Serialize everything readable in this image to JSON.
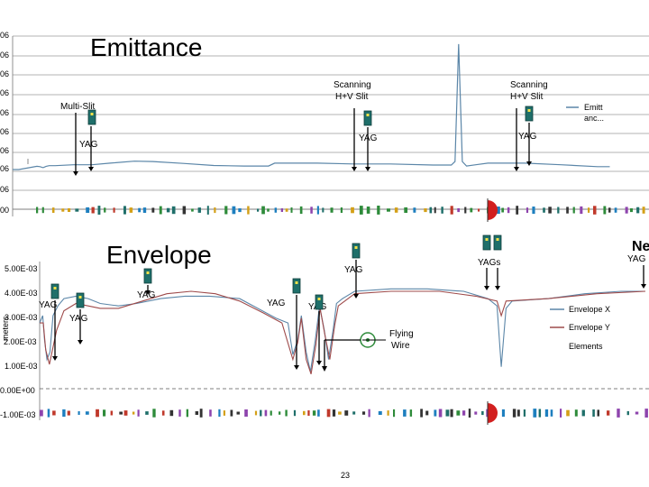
{
  "chart_data": [
    {
      "type": "line",
      "title": "Emittance",
      "ytick_labels": [
        "06",
        "06",
        "06",
        "06",
        "06",
        "06",
        "06",
        "06",
        "06",
        "00"
      ],
      "legend": [
        "Emitt anc..."
      ],
      "annotations": [
        {
          "label": "Multi-Slit",
          "x": 0.1
        },
        {
          "label": "YAG",
          "x": 0.13
        },
        {
          "label": "Scanning H+V Slit",
          "x": 0.555
        },
        {
          "label": "YAG",
          "x": 0.56
        },
        {
          "label": "Scanning H+V Slit",
          "x": 0.82
        },
        {
          "label": "YAG",
          "x": 0.81
        }
      ],
      "series": [
        {
          "points": [
            [
              0.0,
              0.0
            ],
            [
              0.01,
              0.0
            ],
            [
              0.04,
              0.02
            ],
            [
              0.045,
              0.018
            ],
            [
              0.05,
              0.012
            ],
            [
              0.055,
              0.02
            ],
            [
              0.06,
              0.024
            ],
            [
              0.07,
              0.024
            ],
            [
              0.1,
              0.03
            ],
            [
              0.13,
              0.03
            ],
            [
              0.16,
              0.04
            ],
            [
              0.2,
              0.052
            ],
            [
              0.23,
              0.05
            ],
            [
              0.28,
              0.038
            ],
            [
              0.33,
              0.025
            ],
            [
              0.38,
              0.022
            ],
            [
              0.42,
              0.022
            ],
            [
              0.43,
              0.04
            ],
            [
              0.5,
              0.04
            ],
            [
              0.56,
              0.035
            ],
            [
              0.62,
              0.035
            ],
            [
              0.69,
              0.028
            ],
            [
              0.72,
              0.028
            ],
            [
              0.726,
              0.05
            ],
            [
              0.732,
              0.78
            ],
            [
              0.738,
              0.05
            ],
            [
              0.745,
              0.022
            ],
            [
              0.76,
              0.03
            ],
            [
              0.78,
              0.04
            ],
            [
              0.84,
              0.04
            ],
            [
              0.9,
              0.03
            ],
            [
              0.96,
              0.018
            ],
            [
              0.98,
              0.018
            ]
          ]
        }
      ]
    },
    {
      "type": "line",
      "title": "Envelope",
      "ylabel": "meters",
      "ytick_labels": [
        "5.00E-03",
        "4.00E-03",
        "3.00E-03",
        "2.00E-03",
        "1.00E-03",
        "0.00E+00",
        "-1.00E-03"
      ],
      "ylim": [
        -0.001,
        0.005
      ],
      "legend": [
        "Envelope X",
        "Envelope Y",
        "Elements"
      ],
      "annotations": [
        {
          "label": "YAG",
          "x": 0.075
        },
        {
          "label": "YAG",
          "x": 0.123
        },
        {
          "label": "YAG",
          "x": 0.22
        },
        {
          "label": "YAG",
          "x": 0.425
        },
        {
          "label": "YAG",
          "x": 0.49
        },
        {
          "label": "YAG",
          "x": 0.545
        },
        {
          "label": "YAGs",
          "x": 0.76
        },
        {
          "label": "YAG",
          "x": 0.99
        },
        {
          "label": "Flying Wire",
          "x": 0.6
        },
        {
          "label": "Ne",
          "x": 0.99
        }
      ],
      "series": [
        {
          "name": "Envelope X",
          "points": [
            [
              0.0,
              0.0027
            ],
            [
              0.005,
              0.003
            ],
            [
              0.008,
              0.002
            ],
            [
              0.012,
              0.0012
            ],
            [
              0.017,
              0.0015
            ],
            [
              0.022,
              0.003
            ],
            [
              0.03,
              0.0034
            ],
            [
              0.04,
              0.0037
            ],
            [
              0.06,
              0.0038
            ],
            [
              0.08,
              0.0037
            ],
            [
              0.1,
              0.0035
            ],
            [
              0.13,
              0.0034
            ],
            [
              0.16,
              0.0035
            ],
            [
              0.2,
              0.0037
            ],
            [
              0.24,
              0.0038
            ],
            [
              0.28,
              0.0038
            ],
            [
              0.33,
              0.0037
            ],
            [
              0.36,
              0.0033
            ],
            [
              0.39,
              0.0029
            ],
            [
              0.41,
              0.0027
            ],
            [
              0.418,
              0.0014
            ],
            [
              0.426,
              0.002
            ],
            [
              0.432,
              0.003
            ],
            [
              0.44,
              0.0015
            ],
            [
              0.447,
              0.0007
            ],
            [
              0.455,
              0.002
            ],
            [
              0.462,
              0.0034
            ],
            [
              0.47,
              0.0024
            ],
            [
              0.477,
              0.0012
            ],
            [
              0.485,
              0.0025
            ],
            [
              0.49,
              0.0035
            ],
            [
              0.5,
              0.0037
            ],
            [
              0.52,
              0.004
            ],
            [
              0.58,
              0.0041
            ],
            [
              0.64,
              0.0041
            ],
            [
              0.7,
              0.004
            ],
            [
              0.74,
              0.0037
            ],
            [
              0.755,
              0.0034
            ],
            [
              0.762,
              0.0009
            ],
            [
              0.77,
              0.0033
            ],
            [
              0.78,
              0.0036
            ],
            [
              0.84,
              0.0037
            ],
            [
              0.9,
              0.0039
            ],
            [
              0.96,
              0.004
            ],
            [
              1.0,
              0.004
            ]
          ]
        },
        {
          "name": "Envelope Y",
          "points": [
            [
              0.0,
              0.0027
            ],
            [
              0.006,
              0.0027
            ],
            [
              0.01,
              0.0016
            ],
            [
              0.016,
              0.001
            ],
            [
              0.022,
              0.0017
            ],
            [
              0.028,
              0.0024
            ],
            [
              0.04,
              0.0032
            ],
            [
              0.06,
              0.0035
            ],
            [
              0.08,
              0.0034
            ],
            [
              0.1,
              0.0033
            ],
            [
              0.13,
              0.0033
            ],
            [
              0.17,
              0.0036
            ],
            [
              0.21,
              0.0039
            ],
            [
              0.25,
              0.004
            ],
            [
              0.29,
              0.0039
            ],
            [
              0.33,
              0.0036
            ],
            [
              0.37,
              0.0031
            ],
            [
              0.4,
              0.0027
            ],
            [
              0.418,
              0.0012
            ],
            [
              0.426,
              0.0019
            ],
            [
              0.432,
              0.0029
            ],
            [
              0.44,
              0.0012
            ],
            [
              0.448,
              0.0006
            ],
            [
              0.456,
              0.0018
            ],
            [
              0.463,
              0.0033
            ],
            [
              0.471,
              0.0022
            ],
            [
              0.479,
              0.0012
            ],
            [
              0.487,
              0.0026
            ],
            [
              0.493,
              0.0034
            ],
            [
              0.52,
              0.0039
            ],
            [
              0.58,
              0.004
            ],
            [
              0.66,
              0.004
            ],
            [
              0.72,
              0.0038
            ],
            [
              0.755,
              0.0036
            ],
            [
              0.762,
              0.003
            ],
            [
              0.77,
              0.0036
            ],
            [
              0.84,
              0.0037
            ],
            [
              0.92,
              0.0039
            ],
            [
              1.0,
              0.004
            ]
          ]
        }
      ]
    }
  ],
  "page_number": "23"
}
